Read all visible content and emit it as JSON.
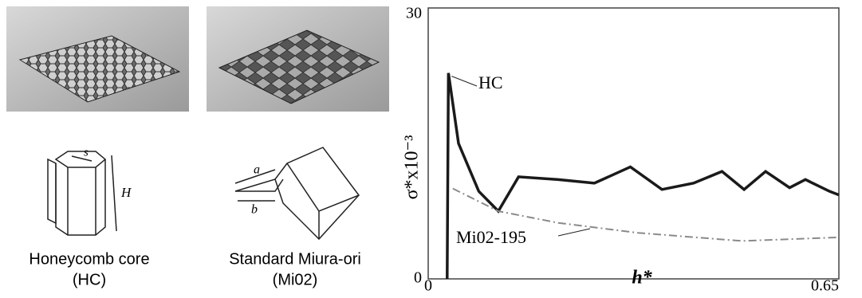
{
  "figure": {
    "panels": [
      {
        "caption": "Honeycomb core",
        "abbrev": "(HC)",
        "dims": [
          "s",
          "H"
        ]
      },
      {
        "caption": "Standard Miura-ori",
        "abbrev": "(Mi02)",
        "dims": [
          "a",
          "b"
        ]
      }
    ]
  },
  "chart_data": {
    "type": "line",
    "xlabel": "h*",
    "ylabel": "σ*x10⁻³",
    "xlim": [
      0,
      0.65
    ],
    "ylim": [
      0,
      30
    ],
    "xticks": [
      0,
      0.65
    ],
    "yticks": [
      0,
      30
    ],
    "series": [
      {
        "name": "HC",
        "color": "#1a1a1a",
        "x": [
          0.03,
          0.032,
          0.048,
          0.08,
          0.111,
          0.143,
          0.206,
          0.263,
          0.32,
          0.37,
          0.42,
          0.465,
          0.5,
          0.534,
          0.572,
          0.597,
          0.635,
          0.65
        ],
        "values": [
          0,
          22.8,
          15,
          9.7,
          7.5,
          11.3,
          11,
          10.6,
          12.4,
          9.9,
          10.6,
          11.9,
          9.9,
          11.9,
          10.1,
          11,
          9.7,
          9.3
        ]
      },
      {
        "name": "Mi02-195",
        "color": "#8a8a8a",
        "x": [
          0.039,
          0.111,
          0.206,
          0.332,
          0.496,
          0.65
        ],
        "values": [
          10,
          7.5,
          6.2,
          5.1,
          4.2,
          4.6
        ]
      }
    ]
  }
}
